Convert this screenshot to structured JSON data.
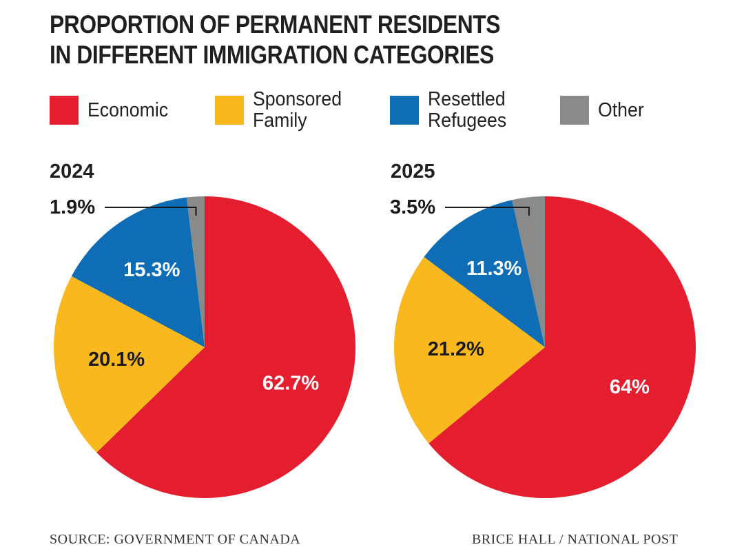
{
  "title_line1": "PROPORTION OF PERMANENT RESIDENTS",
  "title_line2": "IN DIFFERENT IMMIGRATION CATEGORIES",
  "legend": [
    {
      "label": "Economic",
      "color": "#e41e2f"
    },
    {
      "label": "Sponsored\nFamily",
      "color": "#f8b81e"
    },
    {
      "label": "Resettled\nRefugees",
      "color": "#0f6db5"
    },
    {
      "label": "Other",
      "color": "#8a8a8a"
    }
  ],
  "footer": {
    "source": "SOURCE: GOVERNMENT OF CANADA",
    "credit": "BRICE HALL  / NATIONAL POST"
  },
  "chart_data": [
    {
      "type": "pie",
      "title": "2024",
      "categories": [
        "Economic",
        "Sponsored Family",
        "Resettled Refugees",
        "Other"
      ],
      "values": [
        62.7,
        20.1,
        15.3,
        1.9
      ],
      "labels": [
        "62.7%",
        "20.1%",
        "15.3%",
        "1.9%"
      ],
      "colors": [
        "#e41e2f",
        "#f8b81e",
        "#0f6db5",
        "#8a8a8a"
      ]
    },
    {
      "type": "pie",
      "title": "2025",
      "categories": [
        "Economic",
        "Sponsored Family",
        "Resettled Refugees",
        "Other"
      ],
      "values": [
        64,
        21.2,
        11.3,
        3.5
      ],
      "labels": [
        "64%",
        "21.2%",
        "11.3%",
        "3.5%"
      ],
      "colors": [
        "#e41e2f",
        "#f8b81e",
        "#0f6db5",
        "#8a8a8a"
      ]
    }
  ]
}
